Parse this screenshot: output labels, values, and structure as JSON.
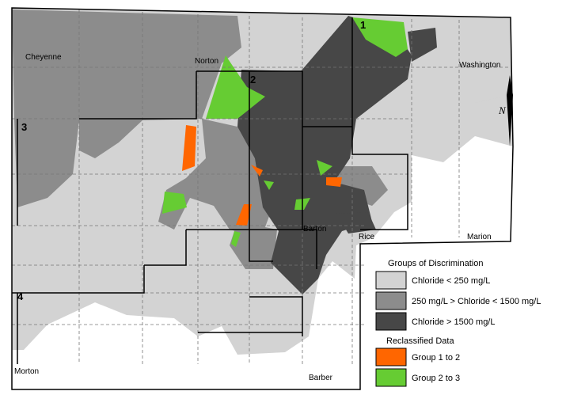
{
  "counties": {
    "cheyenne": "Cheyenne",
    "norton": "Norton",
    "washington": "Washington",
    "barton": "Barton",
    "rice": "Rice",
    "marion": "Marion",
    "morton": "Morton",
    "barber": "Barber"
  },
  "regions": [
    "1",
    "2",
    "3",
    "4"
  ],
  "north_arrow": "N",
  "legend": {
    "title": "Groups of Discrimination",
    "items": [
      "Chloride < 250 mg/L",
      "250 mg/L > Chloride < 1500 mg/L",
      "Chloride > 1500 mg/L"
    ],
    "reclassified_title": "Reclassified Data",
    "reclassified_items": [
      "Group 1 to 2",
      "Group 2 to 3"
    ]
  }
}
